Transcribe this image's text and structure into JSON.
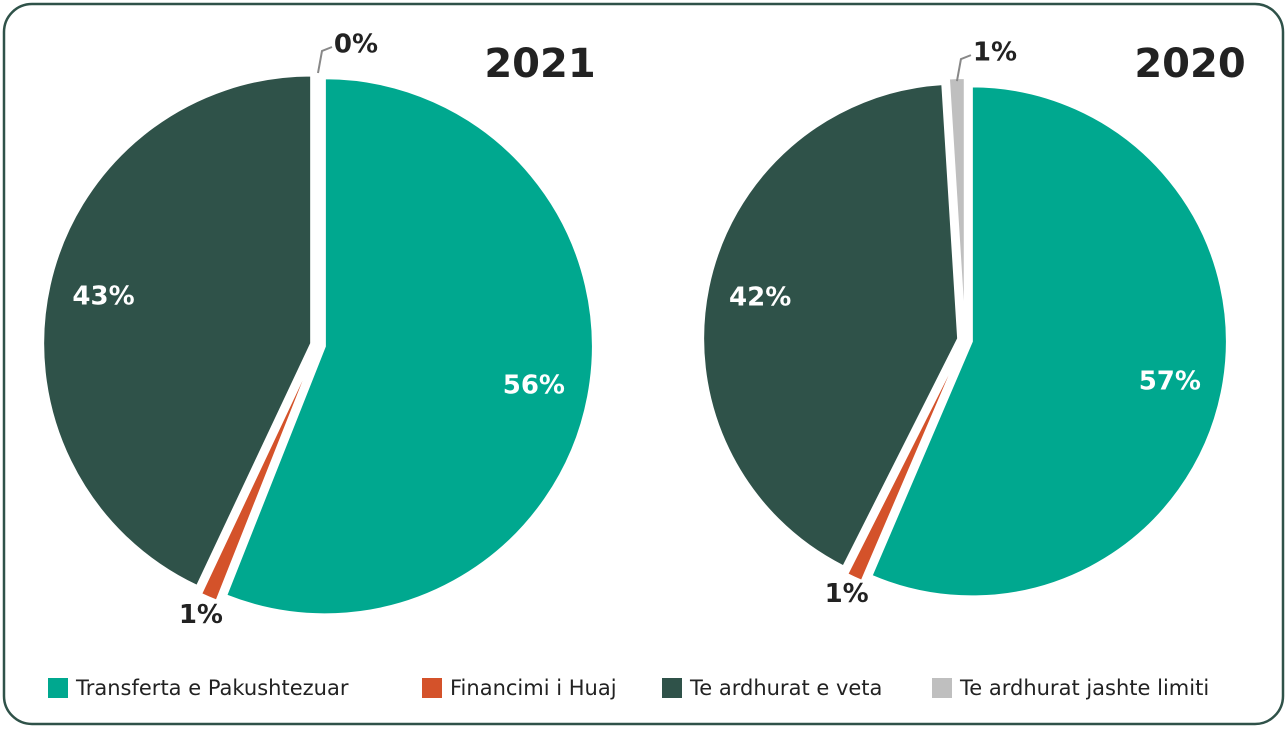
{
  "chart_data": [
    {
      "type": "pie",
      "title": "2021",
      "categories": [
        "Transferta e Pakushtezuar",
        "Financimi i Huaj",
        "Te ardhurat e veta",
        "Te ardhurat jashte limiti"
      ],
      "values": [
        56,
        1,
        43,
        0
      ],
      "value_labels": [
        "56%",
        "1%",
        "43%",
        "0%"
      ],
      "colors": [
        "#00a88f",
        "#d4522a",
        "#2f5249",
        "#bfbfbf"
      ]
    },
    {
      "type": "pie",
      "title": "2020",
      "categories": [
        "Transferta e Pakushtezuar",
        "Financimi i Huaj",
        "Te ardhurat e veta",
        "Te ardhurat jashte limiti"
      ],
      "values": [
        57,
        1,
        42,
        1
      ],
      "value_labels": [
        "57%",
        "1%",
        "42%",
        "1%"
      ],
      "colors": [
        "#00a88f",
        "#d4522a",
        "#2f5249",
        "#bfbfbf"
      ]
    }
  ]
}
